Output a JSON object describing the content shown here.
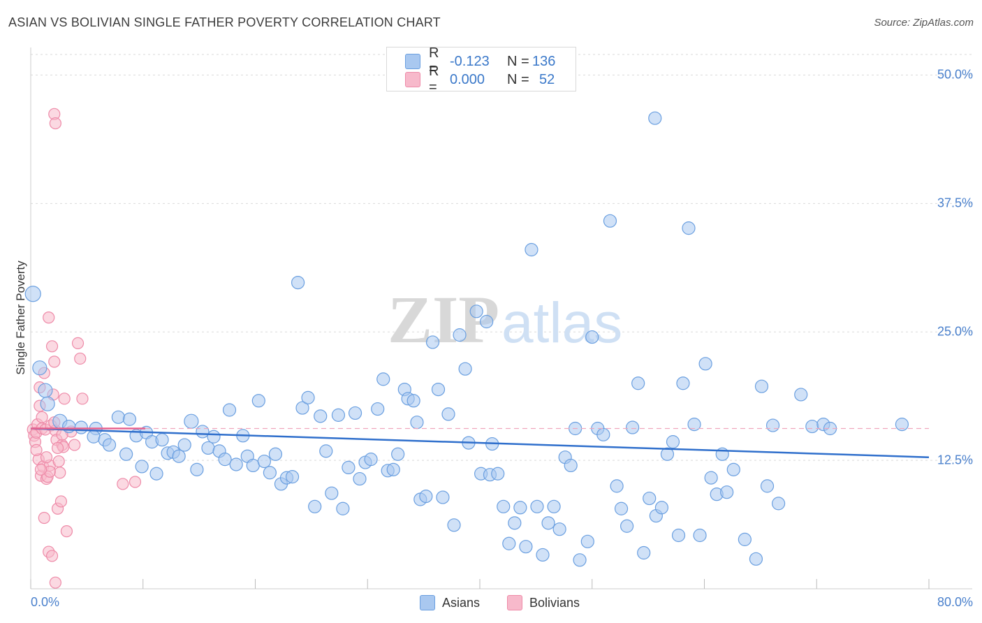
{
  "title": "ASIAN VS BOLIVIAN SINGLE FATHER POVERTY CORRELATION CHART",
  "source": "Source: ZipAtlas.com",
  "watermark": {
    "zip": "ZIP",
    "atlas": "atlas"
  },
  "legend_top": {
    "rows": [
      {
        "r_label": "R =",
        "r_value": "-0.123",
        "n_label": "N =",
        "n_value": "136",
        "color": "#a9c8f0"
      },
      {
        "r_label": "R =",
        "r_value": "0.000",
        "n_label": "N =",
        "n_value": "52",
        "color": "#f7b9cb"
      }
    ]
  },
  "legend_bottom": {
    "asians": "Asians",
    "bolivians": "Bolivians"
  },
  "chart_data": {
    "type": "scatter",
    "title": "ASIAN VS BOLIVIAN SINGLE FATHER POVERTY CORRELATION CHART",
    "xlabel": "",
    "ylabel": "Single Father Poverty",
    "xlim": [
      0,
      80
    ],
    "ylim": [
      0,
      52
    ],
    "x_tick_labels": [
      "0.0%",
      "80.0%"
    ],
    "y_ticks": [
      12.5,
      25.0,
      37.5,
      50.0
    ],
    "y_tick_labels": [
      "12.5%",
      "25.0%",
      "37.5%",
      "50.0%"
    ],
    "grid": true,
    "legend_position": "top-center",
    "series": [
      {
        "name": "Asians",
        "color": "#6a9fe0",
        "fill": "#a9c8f0",
        "trend": {
          "x": [
            0,
            80
          ],
          "y": [
            15.6,
            12.8
          ],
          "color": "#2f6fcc"
        },
        "points": [
          [
            0.2,
            28.7,
            11
          ],
          [
            0.8,
            21.5,
            10
          ],
          [
            1.3,
            19.3,
            10
          ],
          [
            1.5,
            18.0,
            10
          ],
          [
            2.6,
            16.3,
            10
          ],
          [
            3.4,
            15.8,
            9
          ],
          [
            4.5,
            15.7,
            9
          ],
          [
            5.8,
            15.6,
            9
          ],
          [
            5.6,
            14.8,
            9
          ],
          [
            6.6,
            14.5,
            9
          ],
          [
            7.0,
            14.0,
            9
          ],
          [
            7.8,
            16.7,
            9
          ],
          [
            8.5,
            13.1,
            9
          ],
          [
            8.8,
            16.5,
            9
          ],
          [
            9.4,
            14.9,
            9
          ],
          [
            9.9,
            11.9,
            9
          ],
          [
            10.3,
            15.2,
            9
          ],
          [
            10.8,
            14.3,
            9
          ],
          [
            11.2,
            11.2,
            9
          ],
          [
            11.7,
            14.5,
            9
          ],
          [
            12.2,
            13.2,
            9
          ],
          [
            12.7,
            13.3,
            9
          ],
          [
            13.2,
            12.9,
            9
          ],
          [
            13.7,
            14.0,
            9
          ],
          [
            14.3,
            16.3,
            10
          ],
          [
            14.8,
            11.6,
            9
          ],
          [
            15.3,
            15.3,
            9
          ],
          [
            15.8,
            13.7,
            9
          ],
          [
            16.3,
            14.8,
            9
          ],
          [
            16.8,
            13.4,
            9
          ],
          [
            17.3,
            12.6,
            9
          ],
          [
            17.7,
            17.4,
            9
          ],
          [
            18.3,
            12.1,
            9
          ],
          [
            18.9,
            14.9,
            9
          ],
          [
            19.3,
            12.9,
            9
          ],
          [
            19.8,
            12.0,
            9
          ],
          [
            20.3,
            18.3,
            9
          ],
          [
            20.8,
            12.4,
            9
          ],
          [
            21.3,
            11.3,
            9
          ],
          [
            21.8,
            13.1,
            9
          ],
          [
            22.3,
            10.2,
            9
          ],
          [
            22.8,
            10.8,
            9
          ],
          [
            23.3,
            10.9,
            9
          ],
          [
            23.8,
            29.8,
            9
          ],
          [
            24.2,
            17.6,
            9
          ],
          [
            24.7,
            18.6,
            9
          ],
          [
            25.3,
            8.0,
            9
          ],
          [
            25.8,
            16.8,
            9
          ],
          [
            26.3,
            13.4,
            9
          ],
          [
            26.8,
            9.3,
            9
          ],
          [
            27.4,
            16.9,
            9
          ],
          [
            27.8,
            7.8,
            9
          ],
          [
            28.3,
            11.8,
            9
          ],
          [
            28.9,
            17.1,
            9
          ],
          [
            29.3,
            10.7,
            9
          ],
          [
            29.8,
            12.3,
            9
          ],
          [
            30.3,
            12.6,
            9
          ],
          [
            30.9,
            17.5,
            9
          ],
          [
            31.4,
            20.4,
            9
          ],
          [
            31.8,
            11.5,
            9
          ],
          [
            32.3,
            11.6,
            9
          ],
          [
            32.7,
            13.1,
            9
          ],
          [
            33.3,
            19.4,
            9
          ],
          [
            33.6,
            18.5,
            9
          ],
          [
            34.1,
            18.3,
            9
          ],
          [
            34.4,
            16.2,
            9
          ],
          [
            34.7,
            8.7,
            9
          ],
          [
            35.2,
            9.0,
            9
          ],
          [
            35.8,
            24.0,
            9
          ],
          [
            36.3,
            19.4,
            9
          ],
          [
            36.7,
            8.9,
            9
          ],
          [
            37.2,
            17.0,
            9
          ],
          [
            37.7,
            6.2,
            9
          ],
          [
            38.2,
            24.7,
            9
          ],
          [
            38.7,
            21.4,
            9
          ],
          [
            39.0,
            14.2,
            9
          ],
          [
            39.7,
            27.0,
            9
          ],
          [
            40.1,
            11.2,
            9
          ],
          [
            40.6,
            26.0,
            9
          ],
          [
            40.9,
            11.1,
            9
          ],
          [
            41.1,
            14.1,
            9
          ],
          [
            41.6,
            11.2,
            9
          ],
          [
            42.1,
            8.0,
            9
          ],
          [
            42.6,
            4.4,
            9
          ],
          [
            43.1,
            6.4,
            9
          ],
          [
            43.6,
            7.9,
            9
          ],
          [
            44.1,
            4.1,
            9
          ],
          [
            44.6,
            33.0,
            9
          ],
          [
            45.1,
            8.0,
            9
          ],
          [
            45.6,
            3.3,
            9
          ],
          [
            46.1,
            6.4,
            9
          ],
          [
            46.6,
            8.0,
            9
          ],
          [
            47.1,
            5.8,
            9
          ],
          [
            47.6,
            12.8,
            9
          ],
          [
            48.1,
            12.0,
            9
          ],
          [
            48.5,
            15.6,
            9
          ],
          [
            48.9,
            2.8,
            9
          ],
          [
            49.6,
            4.6,
            9
          ],
          [
            50.0,
            24.5,
            9
          ],
          [
            50.5,
            15.6,
            9
          ],
          [
            51.0,
            15.0,
            9
          ],
          [
            51.6,
            35.8,
            9
          ],
          [
            52.2,
            10.0,
            9
          ],
          [
            52.6,
            7.8,
            9
          ],
          [
            53.1,
            6.1,
            9
          ],
          [
            53.6,
            15.7,
            9
          ],
          [
            54.1,
            20.0,
            9
          ],
          [
            54.6,
            3.5,
            9
          ],
          [
            55.1,
            8.8,
            9
          ],
          [
            55.7,
            7.1,
            9
          ],
          [
            56.2,
            7.9,
            9
          ],
          [
            56.7,
            13.1,
            9
          ],
          [
            57.2,
            14.3,
            9
          ],
          [
            57.7,
            5.2,
            9
          ],
          [
            58.1,
            20.0,
            9
          ],
          [
            58.6,
            35.1,
            9
          ],
          [
            59.1,
            16.0,
            9
          ],
          [
            59.6,
            5.2,
            9
          ],
          [
            60.1,
            21.9,
            9
          ],
          [
            60.6,
            10.8,
            9
          ],
          [
            61.1,
            9.2,
            9
          ],
          [
            61.6,
            13.1,
            9
          ],
          [
            62.0,
            9.4,
            9
          ],
          [
            62.6,
            11.6,
            9
          ],
          [
            63.6,
            4.8,
            9
          ],
          [
            64.6,
            2.9,
            9
          ],
          [
            65.1,
            19.7,
            9
          ],
          [
            65.6,
            10.0,
            9
          ],
          [
            66.1,
            15.9,
            9
          ],
          [
            66.6,
            8.3,
            9
          ],
          [
            68.6,
            18.9,
            9
          ],
          [
            69.6,
            15.8,
            9
          ],
          [
            70.6,
            16.0,
            9
          ],
          [
            71.2,
            15.6,
            9
          ],
          [
            77.6,
            16.0,
            9
          ],
          [
            55.6,
            45.8,
            9
          ]
        ]
      },
      {
        "name": "Bolivians",
        "color": "#ee8aa8",
        "fill": "#f7b9cb",
        "trend": {
          "x": [
            0,
            80
          ],
          "y": [
            15.6,
            15.6
          ],
          "color": "#e8618d",
          "solid_until": 10.2
        },
        "points": [
          [
            0.2,
            15.5,
            8
          ],
          [
            0.3,
            14.9,
            8
          ],
          [
            0.4,
            14.3,
            8
          ],
          [
            0.5,
            15.2,
            8
          ],
          [
            0.6,
            16.0,
            8
          ],
          [
            0.7,
            12.6,
            8
          ],
          [
            0.8,
            17.8,
            8
          ],
          [
            0.9,
            11.0,
            8
          ],
          [
            1.0,
            15.6,
            8
          ],
          [
            1.1,
            11.9,
            8
          ],
          [
            1.2,
            21.0,
            8
          ],
          [
            1.3,
            15.5,
            8
          ],
          [
            1.4,
            10.7,
            8
          ],
          [
            1.5,
            10.9,
            8
          ],
          [
            1.6,
            26.4,
            8
          ],
          [
            1.7,
            12.0,
            8
          ],
          [
            1.8,
            15.9,
            8
          ],
          [
            1.9,
            23.6,
            8
          ],
          [
            2.0,
            18.9,
            8
          ],
          [
            2.1,
            22.1,
            8
          ],
          [
            2.2,
            15.4,
            8
          ],
          [
            2.3,
            14.5,
            8
          ],
          [
            2.4,
            7.8,
            8
          ],
          [
            2.5,
            12.4,
            8
          ],
          [
            2.6,
            11.3,
            8
          ],
          [
            2.7,
            8.5,
            8
          ],
          [
            2.8,
            14.0,
            8
          ],
          [
            2.9,
            13.8,
            8
          ],
          [
            3.0,
            18.5,
            8
          ],
          [
            3.2,
            5.6,
            8
          ],
          [
            3.6,
            15.3,
            8
          ],
          [
            3.9,
            14.0,
            8
          ],
          [
            4.2,
            23.9,
            8
          ],
          [
            4.4,
            22.4,
            8
          ],
          [
            4.6,
            18.5,
            8
          ],
          [
            8.2,
            10.2,
            8
          ],
          [
            9.3,
            10.4,
            8
          ],
          [
            2.1,
            46.2,
            8
          ],
          [
            2.2,
            45.3,
            8
          ],
          [
            1.2,
            6.9,
            8
          ],
          [
            1.6,
            3.6,
            8
          ],
          [
            1.9,
            3.2,
            8
          ],
          [
            2.2,
            0.6,
            8
          ],
          [
            0.5,
            13.5,
            8
          ],
          [
            0.8,
            19.6,
            8
          ],
          [
            1.0,
            16.7,
            8
          ],
          [
            1.4,
            12.8,
            8
          ],
          [
            1.7,
            11.4,
            8
          ],
          [
            2.1,
            16.2,
            8
          ],
          [
            2.4,
            13.7,
            8
          ],
          [
            2.8,
            15.0,
            8
          ],
          [
            0.9,
            11.6,
            8
          ]
        ]
      }
    ]
  }
}
